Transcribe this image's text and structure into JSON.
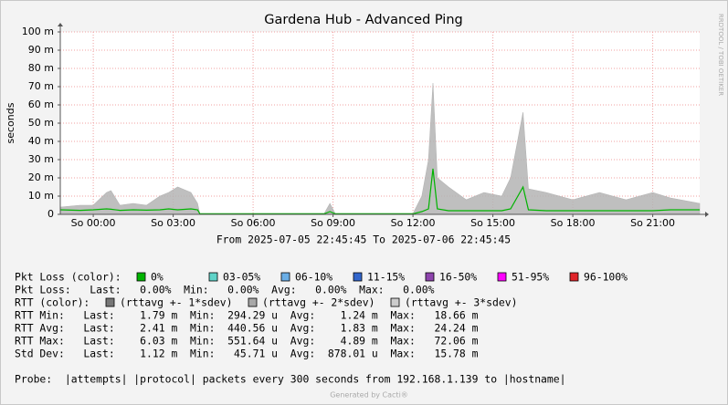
{
  "chart_data": {
    "type": "line",
    "title": "Gardena Hub - Advanced Ping",
    "y_label": "seconds",
    "watermark": "RRDTOOL / TOBI OETIKER",
    "x_caption": "From 2025-07-05 22:45:45 To 2025-07-06 22:45:45",
    "footer": "Generated by Cacti®",
    "grid": true,
    "ylim": [
      0,
      0.1
    ],
    "yticks": [
      0,
      {
        "value": 0.01,
        "label": "10 m"
      },
      {
        "value": 0.02,
        "label": "20 m"
      },
      {
        "value": 0.03,
        "label": "30 m"
      },
      {
        "value": 0.04,
        "label": "40 m"
      },
      {
        "value": 0.05,
        "label": "50 m"
      },
      {
        "value": 0.06,
        "label": "60 m"
      },
      {
        "value": 0.07,
        "label": "70 m"
      },
      {
        "value": 0.08,
        "label": "80 m"
      },
      {
        "value": 0.09,
        "label": "90 m"
      },
      {
        "value": 0.1,
        "label": "100 m"
      }
    ],
    "xlim": [
      "2025-07-05 22:45:45",
      "2025-07-06 22:45:45"
    ],
    "xticks": [
      {
        "value": "2025-07-06 00:00",
        "label": "So 00:00"
      },
      {
        "value": "2025-07-06 03:00",
        "label": "So 03:00"
      },
      {
        "value": "2025-07-06 06:00",
        "label": "So 06:00"
      },
      {
        "value": "2025-07-06 09:00",
        "label": "So 09:00"
      },
      {
        "value": "2025-07-06 12:00",
        "label": "So 12:00"
      },
      {
        "value": "2025-07-06 15:00",
        "label": "So 15:00"
      },
      {
        "value": "2025-07-06 18:00",
        "label": "So 18:00"
      },
      {
        "value": "2025-07-06 21:00",
        "label": "So 21:00"
      }
    ],
    "x": [
      "2025-07-05 22:45:45",
      "2025-07-05 23:30",
      "2025-07-06 00:00",
      "2025-07-06 00:30",
      "2025-07-06 00:40",
      "2025-07-06 01:00",
      "2025-07-06 01:30",
      "2025-07-06 02:00",
      "2025-07-06 02:30",
      "2025-07-06 02:50",
      "2025-07-06 03:10",
      "2025-07-06 03:40",
      "2025-07-06 03:55",
      "2025-07-06 04:00",
      "2025-07-06 06:00",
      "2025-07-06 08:40",
      "2025-07-06 08:53",
      "2025-07-06 09:05",
      "2025-07-06 12:00",
      "2025-07-06 12:20",
      "2025-07-06 12:35",
      "2025-07-06 12:45",
      "2025-07-06 12:55",
      "2025-07-06 13:20",
      "2025-07-06 14:00",
      "2025-07-06 14:40",
      "2025-07-06 15:20",
      "2025-07-06 15:40",
      "2025-07-06 16:08",
      "2025-07-06 16:20",
      "2025-07-06 17:00",
      "2025-07-06 18:00",
      "2025-07-06 19:00",
      "2025-07-06 20:00",
      "2025-07-06 21:00",
      "2025-07-06 21:40",
      "2025-07-06 22:45:45"
    ],
    "series": [
      {
        "color": "#b4b4b4",
        "fill": true,
        "values": [
          0.004,
          0.005,
          0.005,
          0.012,
          0.013,
          0.005,
          0.006,
          0.005,
          0.01,
          0.012,
          0.015,
          0.012,
          0.006,
          0.0003,
          0.0004,
          0.0004,
          0.006,
          0.0004,
          0.0004,
          0.01,
          0.03,
          0.072,
          0.02,
          0.015,
          0.008,
          0.012,
          0.01,
          0.02,
          0.056,
          0.014,
          0.012,
          0.008,
          0.012,
          0.008,
          0.012,
          0.009,
          0.006
        ]
      },
      {
        "color": "#00b300",
        "fill": false,
        "values": [
          0.0025,
          0.0022,
          0.0025,
          0.003,
          0.0028,
          0.0022,
          0.0025,
          0.0023,
          0.0025,
          0.003,
          0.0025,
          0.003,
          0.0025,
          0.0003,
          0.0003,
          0.0003,
          0.0015,
          0.0003,
          0.0003,
          0.0015,
          0.003,
          0.025,
          0.003,
          0.002,
          0.002,
          0.002,
          0.002,
          0.003,
          0.015,
          0.0025,
          0.002,
          0.002,
          0.002,
          0.002,
          0.002,
          0.0025,
          0.0025
        ]
      }
    ],
    "legend": {
      "pkt_loss_label": "Pkt Loss (color):",
      "pkt_loss_colors": [
        {
          "label": "0%",
          "color": "#00b300"
        },
        {
          "label": "03-05%",
          "color": "#5fd3c8"
        },
        {
          "label": "06-10%",
          "color": "#6aaee6"
        },
        {
          "label": "11-15%",
          "color": "#3366cc"
        },
        {
          "label": "16-50%",
          "color": "#8e44ad"
        },
        {
          "label": "51-95%",
          "color": "#ff00ff"
        },
        {
          "label": "96-100%",
          "color": "#e0242a"
        }
      ],
      "pkt_loss_stats": "Pkt Loss:   Last:   0.00%  Min:   0.00%  Avg:   0.00%  Max:   0.00%",
      "rtt_label": "RTT (color):",
      "rtt_colors": [
        {
          "label": "(rttavg +- 1*sdev)",
          "color": "#777777"
        },
        {
          "label": "(rttavg +- 2*sdev)",
          "color": "#a8a8a8"
        },
        {
          "label": "(rttavg +- 3*sdev)",
          "color": "#cccccc"
        }
      ],
      "rtt_stats": [
        "RTT Min:   Last:    1.79 m  Min:  294.29 u  Avg:    1.24 m  Max:   18.66 m",
        "RTT Avg:   Last:    2.41 m  Min:  440.56 u  Avg:    1.83 m  Max:   24.24 m",
        "RTT Max:   Last:    6.03 m  Min:  551.64 u  Avg:    4.89 m  Max:   72.06 m",
        "Std Dev:   Last:    1.12 m  Min:   45.71 u  Avg:  878.01 u  Max:   15.78 m"
      ],
      "probe": "Probe:  |attempts| |protocol| packets every 300 seconds from 192.168.1.139 to |hostname|"
    }
  }
}
